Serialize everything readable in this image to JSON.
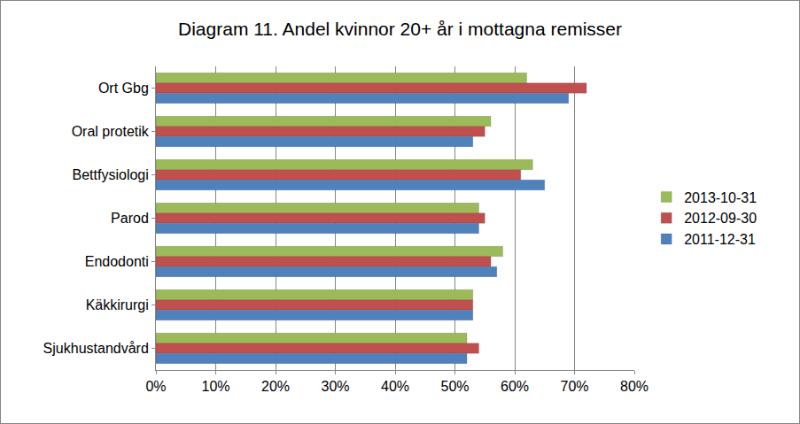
{
  "chart_data": {
    "type": "bar",
    "orientation": "horizontal",
    "title": "Diagram 11. Andel kvinnor 20+ år i mottagna remisser",
    "categories": [
      "Ort Gbg",
      "Oral protetik",
      "Bettfysiologi",
      "Parod",
      "Endodonti",
      "Käkkirurgi",
      "Sjukhustandvård"
    ],
    "series": [
      {
        "name": "2013-10-31",
        "color": "#9bbb59",
        "values": [
          62,
          56,
          63,
          54,
          58,
          53,
          52
        ]
      },
      {
        "name": "2012-09-30",
        "color": "#c0504d",
        "values": [
          72,
          55,
          61,
          55,
          56,
          53,
          54
        ]
      },
      {
        "name": "2011-12-31",
        "color": "#4f81bd",
        "values": [
          69,
          53,
          65,
          54,
          57,
          53,
          52
        ]
      }
    ],
    "xlim": [
      0,
      80
    ],
    "xticks": [
      {
        "value": 0,
        "label": "0%"
      },
      {
        "value": 10,
        "label": "10%"
      },
      {
        "value": 20,
        "label": "20%"
      },
      {
        "value": 30,
        "label": "30%"
      },
      {
        "value": 40,
        "label": "40%"
      },
      {
        "value": 50,
        "label": "50%"
      },
      {
        "value": 60,
        "label": "60%"
      },
      {
        "value": 70,
        "label": "70%"
      },
      {
        "value": 80,
        "label": "80%"
      }
    ],
    "grid": true,
    "legend": "right"
  }
}
